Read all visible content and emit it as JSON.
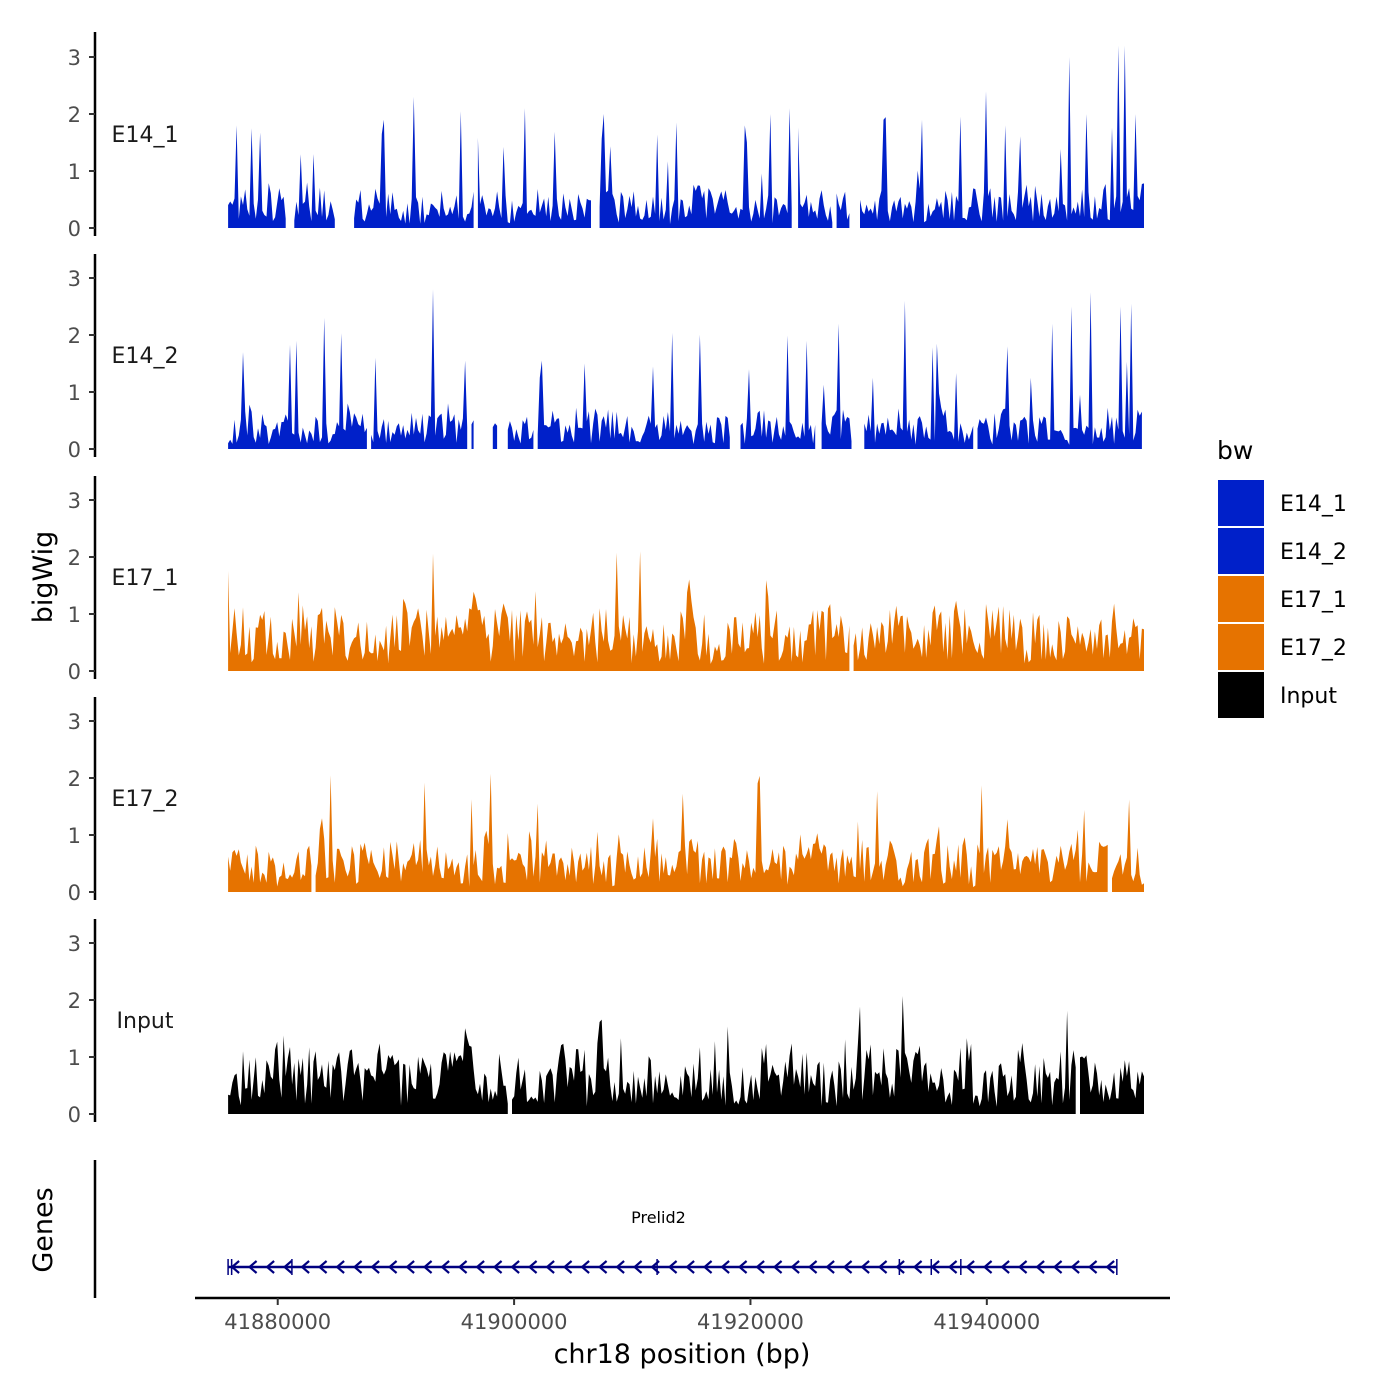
{
  "chart_data": {
    "type": "area",
    "chromosome": "chr18",
    "xlabel": "chr18 position (bp)",
    "ylabel": "bigWig",
    "gene_track_label": "Genes",
    "xlim": [
      41873000,
      41955500
    ],
    "data_range": [
      41875800,
      41953300
    ],
    "x_ticks": [
      41880000,
      41900000,
      41920000,
      41940000
    ],
    "x_tick_labels": [
      "41880000",
      "41900000",
      "41920000",
      "41940000"
    ],
    "ylim": [
      0,
      3.45
    ],
    "y_ticks": [
      0,
      1,
      2,
      3
    ],
    "y_tick_labels": [
      "0",
      "1",
      "2",
      "3"
    ],
    "legend": {
      "title": "bw",
      "items": [
        {
          "label": "E14_1",
          "color": "#0020C9"
        },
        {
          "label": "E14_2",
          "color": "#0020C9"
        },
        {
          "label": "E17_1",
          "color": "#E67300"
        },
        {
          "label": "E17_2",
          "color": "#E67300"
        },
        {
          "label": "Input",
          "color": "#000000"
        }
      ]
    },
    "series": [
      {
        "name": "E14_1",
        "color": "#0020C9",
        "peaks": [
          [
            41876500,
            1.8
          ],
          [
            41877800,
            1.75
          ],
          [
            41883000,
            1.3
          ],
          [
            41889000,
            1.9
          ],
          [
            41891600,
            2.3
          ],
          [
            41895500,
            2.05
          ],
          [
            41901000,
            2.1
          ],
          [
            41907600,
            2.0
          ],
          [
            41913800,
            1.85
          ],
          [
            41919500,
            1.8
          ],
          [
            41921700,
            2.0
          ],
          [
            41923400,
            2.1
          ],
          [
            41931200,
            1.9
          ],
          [
            41934500,
            1.9
          ],
          [
            41940000,
            2.4
          ],
          [
            41941600,
            1.8
          ],
          [
            41947000,
            3.0
          ],
          [
            41948500,
            2.0
          ],
          [
            41951200,
            3.2
          ],
          [
            41951700,
            3.2
          ],
          [
            41952600,
            2.0
          ]
        ],
        "gaps": [
          [
            41880800,
            41881400
          ],
          [
            41885000,
            41886300
          ],
          [
            41906600,
            41907200
          ],
          [
            41928500,
            41929100
          ]
        ]
      },
      {
        "name": "E14_2",
        "color": "#0020C9",
        "peaks": [
          [
            41877000,
            1.7
          ],
          [
            41881500,
            1.9
          ],
          [
            41884000,
            2.3
          ],
          [
            41888200,
            1.6
          ],
          [
            41893200,
            2.8
          ],
          [
            41895800,
            1.55
          ],
          [
            41902400,
            1.55
          ],
          [
            41906000,
            1.5
          ],
          [
            41911800,
            1.45
          ],
          [
            41919800,
            1.4
          ],
          [
            41924700,
            1.9
          ],
          [
            41927500,
            2.2
          ],
          [
            41933000,
            2.6
          ],
          [
            41935700,
            1.85
          ],
          [
            41941800,
            1.8
          ],
          [
            41945500,
            2.2
          ],
          [
            41947100,
            2.5
          ],
          [
            41948700,
            2.75
          ],
          [
            41951400,
            2.5
          ],
          [
            41952200,
            2.55
          ]
        ],
        "gaps": [
          [
            41896600,
            41898200
          ],
          [
            41898600,
            41899400
          ],
          [
            41918300,
            41919100
          ],
          [
            41925500,
            41925900
          ],
          [
            41928600,
            41929500
          ]
        ]
      },
      {
        "name": "E17_1",
        "color": "#E67300"
      },
      {
        "name": "E17_2",
        "color": "#E67300"
      },
      {
        "name": "Input",
        "color": "#000000"
      }
    ],
    "genes": [
      {
        "name": "Prelid2",
        "start": 41875800,
        "end": 41951000,
        "strand": "-",
        "color": "#000080",
        "exon_boundaries": [
          41876100,
          41881200,
          41912100,
          41932600,
          41935300,
          41937800
        ]
      }
    ]
  }
}
